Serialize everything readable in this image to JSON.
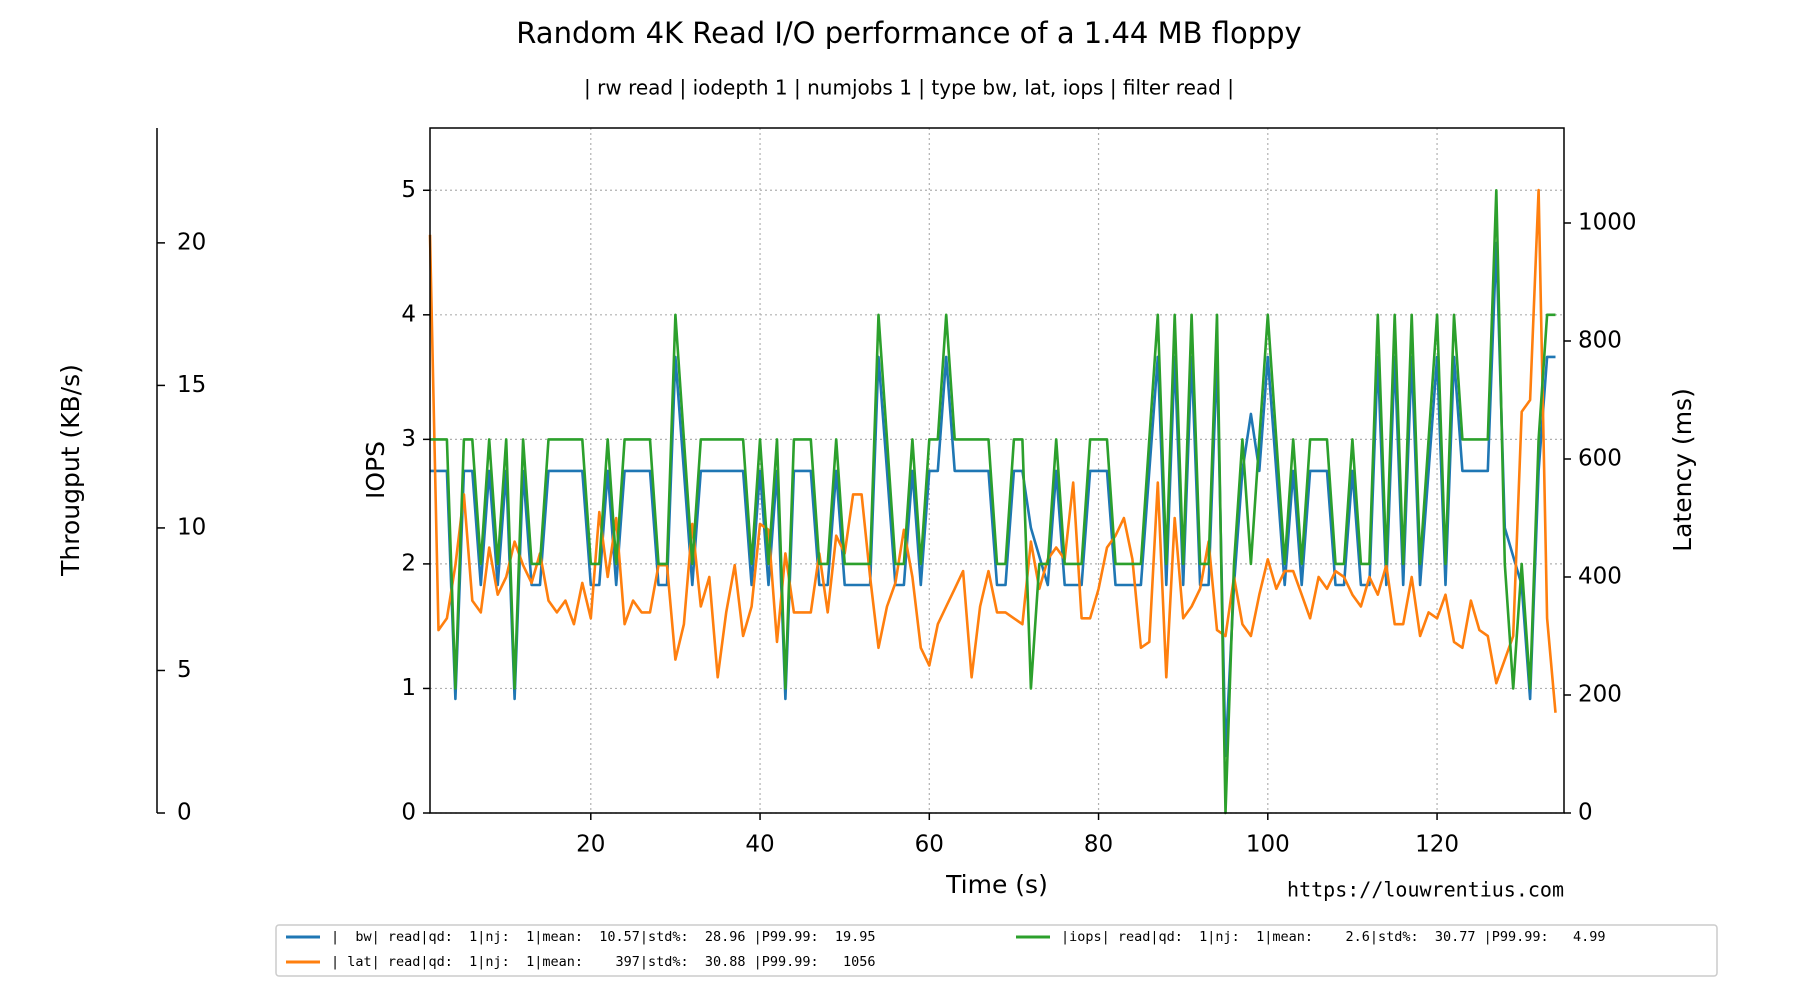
{
  "chart_data": {
    "type": "line",
    "title": "Random 4K Read I/O performance of a 1.44 MB floppy",
    "subtitle": "| rw read | iodepth 1 | numjobs 1 | type bw, lat, iops | filter read |",
    "xlabel": "Time (s)",
    "ylabel": "IOPS",
    "y2label": "Latency (ms)",
    "y3label": "Througput (KB/s)",
    "annotation": "https://louwrentius.com",
    "grid": true,
    "legend": "lower center",
    "xlim": [
      1,
      135
    ],
    "xticks": [
      20,
      40,
      60,
      80,
      100,
      120
    ],
    "ylim": [
      0,
      5.5
    ],
    "yticks": [
      0,
      1,
      2,
      3,
      4,
      5
    ],
    "y2lim": [
      0,
      1161
    ],
    "y2ticks": [
      0,
      200,
      400,
      600,
      800,
      1000
    ],
    "y3lim": [
      0,
      24.03
    ],
    "y3ticks": [
      0,
      5,
      10,
      15,
      20
    ],
    "x": [
      1,
      2,
      3,
      4,
      5,
      6,
      7,
      8,
      9,
      10,
      11,
      12,
      13,
      14,
      15,
      16,
      17,
      18,
      19,
      20,
      21,
      22,
      23,
      24,
      25,
      26,
      27,
      28,
      29,
      30,
      31,
      32,
      33,
      34,
      35,
      36,
      37,
      38,
      39,
      40,
      41,
      42,
      43,
      44,
      45,
      46,
      47,
      48,
      49,
      50,
      51,
      52,
      53,
      54,
      55,
      56,
      57,
      58,
      59,
      60,
      61,
      62,
      63,
      64,
      65,
      66,
      67,
      68,
      69,
      70,
      71,
      72,
      73,
      74,
      75,
      76,
      77,
      78,
      79,
      80,
      81,
      82,
      83,
      84,
      85,
      86,
      87,
      88,
      89,
      90,
      91,
      92,
      93,
      94,
      95,
      96,
      97,
      98,
      99,
      100,
      101,
      102,
      103,
      104,
      105,
      106,
      107,
      108,
      109,
      110,
      111,
      112,
      113,
      114,
      115,
      116,
      117,
      118,
      119,
      120,
      121,
      122,
      123,
      124,
      125,
      126,
      127,
      128,
      129,
      130,
      131,
      132,
      133,
      134
    ],
    "series": [
      {
        "name": "|  bw| read|qd:  1|nj:  1|mean:  10.57|std%:  28.96 |P99.99:  19.95",
        "color": "#1f77b4",
        "axis": "y3",
        "values": [
          12,
          12,
          12,
          4,
          12,
          12,
          8,
          12,
          8,
          12,
          4,
          12,
          8,
          8,
          12,
          12,
          12,
          12,
          12,
          8,
          8,
          12,
          8,
          12,
          12,
          12,
          12,
          8,
          8,
          16,
          12,
          8,
          12,
          12,
          12,
          12,
          12,
          12,
          8,
          12,
          8,
          12,
          4,
          12,
          12,
          12,
          8,
          8,
          12,
          8,
          8,
          8,
          8,
          16,
          12,
          8,
          8,
          12,
          8,
          12,
          12,
          16,
          12,
          12,
          12,
          12,
          12,
          8,
          8,
          12,
          12,
          10,
          9,
          8,
          12,
          8,
          8,
          8,
          12,
          12,
          12,
          8,
          8,
          8,
          8,
          12,
          16,
          8,
          16,
          8,
          16,
          8,
          8,
          16,
          2,
          8,
          12,
          14,
          12,
          16,
          12,
          8,
          12,
          8,
          12,
          12,
          12,
          8,
          8,
          12,
          8,
          8,
          16,
          8,
          16,
          8,
          16,
          8,
          12,
          16,
          8,
          16,
          12,
          12,
          12,
          12,
          20,
          10,
          9,
          8,
          4,
          12,
          16,
          16
        ]
      },
      {
        "name": "| lat| read|qd:  1|nj:  1|mean:    397|std%:  30.88 |P99.99:   1056",
        "color": "#ff7f0e",
        "axis": "y2",
        "values": [
          980,
          310,
          330,
          420,
          540,
          360,
          340,
          450,
          370,
          400,
          460,
          420,
          390,
          440,
          360,
          340,
          360,
          320,
          390,
          330,
          510,
          400,
          500,
          320,
          360,
          340,
          340,
          420,
          420,
          260,
          320,
          490,
          350,
          400,
          230,
          340,
          420,
          300,
          350,
          490,
          480,
          290,
          440,
          340,
          340,
          340,
          440,
          340,
          470,
          440,
          540,
          540,
          400,
          280,
          350,
          390,
          480,
          400,
          280,
          250,
          320,
          350,
          380,
          410,
          230,
          350,
          410,
          340,
          340,
          330,
          320,
          460,
          380,
          430,
          450,
          430,
          560,
          330,
          330,
          380,
          450,
          470,
          500,
          430,
          280,
          290,
          560,
          230,
          500,
          330,
          350,
          380,
          460,
          310,
          300,
          400,
          320,
          300,
          370,
          430,
          380,
          410,
          410,
          370,
          330,
          400,
          380,
          410,
          400,
          370,
          350,
          400,
          370,
          420,
          320,
          320,
          400,
          300,
          340,
          330,
          370,
          290,
          280,
          360,
          310,
          300,
          220,
          260,
          300,
          680,
          700,
          1056,
          330,
          170
        ]
      },
      {
        "name": "|iops| read|qd:  1|nj:  1|mean:    2.6|std%:  30.77 |P99.99:   4.99",
        "color": "#2ca02c",
        "axis": "y",
        "values": [
          3,
          3,
          3,
          1,
          3,
          3,
          2,
          3,
          2,
          3,
          1,
          3,
          2,
          2,
          3,
          3,
          3,
          3,
          3,
          2,
          2,
          3,
          2,
          3,
          3,
          3,
          3,
          2,
          2,
          4,
          3,
          2,
          3,
          3,
          3,
          3,
          3,
          3,
          2,
          3,
          2,
          3,
          1,
          3,
          3,
          3,
          2,
          2,
          3,
          2,
          2,
          2,
          2,
          4,
          3,
          2,
          2,
          3,
          2,
          3,
          3,
          4,
          3,
          3,
          3,
          3,
          3,
          2,
          2,
          3,
          3,
          1,
          2,
          2,
          3,
          2,
          2,
          2,
          3,
          3,
          3,
          2,
          2,
          2,
          2,
          3,
          4,
          2,
          4,
          2,
          4,
          2,
          2,
          4,
          0,
          2,
          3,
          2,
          3,
          4,
          3,
          2,
          3,
          2,
          3,
          3,
          3,
          2,
          2,
          3,
          2,
          2,
          4,
          2,
          4,
          2,
          4,
          2,
          3,
          4,
          2,
          4,
          3,
          3,
          3,
          3,
          5,
          2,
          1,
          2,
          1,
          3,
          4,
          4
        ]
      }
    ]
  }
}
